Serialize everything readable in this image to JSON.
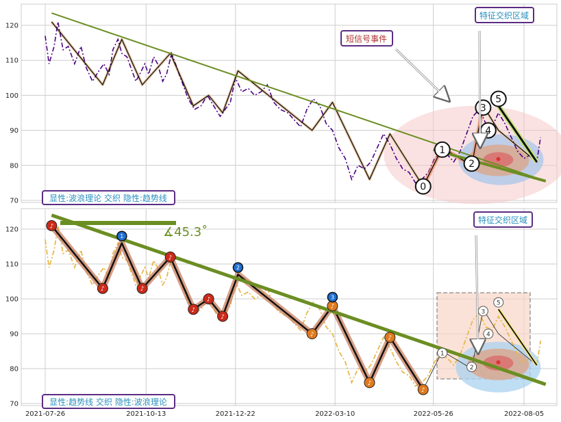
{
  "chart_data": [
    {
      "type": "line",
      "ylim": [
        69,
        127
      ],
      "yticks": [
        70,
        80,
        90,
        100,
        110,
        120
      ],
      "grid": true,
      "series": [
        {
          "style": "dashdot",
          "color": "#4b0082",
          "x": [
            "2021-07-26",
            "2021-07-29",
            "2021-08-02",
            "2021-08-05",
            "2021-08-09",
            "2021-08-13",
            "2021-08-18",
            "2021-08-23",
            "2021-08-27",
            "2021-09-01",
            "2021-09-06",
            "2021-09-10",
            "2021-09-14",
            "2021-09-17",
            "2021-09-21",
            "2021-09-24",
            "2021-09-28",
            "2021-10-01",
            "2021-10-05",
            "2021-10-08",
            "2021-10-12",
            "2021-10-15",
            "2021-10-19",
            "2021-10-22",
            "2021-10-26",
            "2021-10-29",
            "2021-11-02",
            "2021-11-06",
            "2021-11-10",
            "2021-11-15",
            "2021-11-20",
            "2021-11-25",
            "2021-11-30",
            "2021-12-05",
            "2021-12-10",
            "2021-12-14",
            "2021-12-18",
            "2021-12-22",
            "2021-12-27",
            "2022-01-01",
            "2022-01-06",
            "2022-01-11",
            "2022-01-16",
            "2022-01-21",
            "2022-01-26",
            "2022-02-01",
            "2022-02-06",
            "2022-02-11",
            "2022-02-16",
            "2022-02-21",
            "2022-02-26",
            "2022-03-03",
            "2022-03-08",
            "2022-03-13",
            "2022-03-18",
            "2022-03-23",
            "2022-03-28",
            "2022-04-02",
            "2022-04-07",
            "2022-04-12",
            "2022-04-17",
            "2022-04-22",
            "2022-04-27",
            "2022-05-02",
            "2022-05-07",
            "2022-05-12",
            "2022-05-17",
            "2022-05-22",
            "2022-05-27",
            "2022-06-01",
            "2022-06-06",
            "2022-06-11",
            "2022-06-16",
            "2022-06-21",
            "2022-06-26",
            "2022-07-01",
            "2022-07-06",
            "2022-07-11",
            "2022-07-16",
            "2022-07-21",
            "2022-07-26",
            "2022-07-31",
            "2022-08-05",
            "2022-08-10",
            "2022-08-15",
            "2022-08-18"
          ],
          "y": [
            117,
            109,
            114,
            121,
            113,
            114,
            109,
            114,
            108,
            104,
            107,
            109,
            106,
            113,
            116,
            112,
            111,
            108,
            104,
            106,
            109,
            106,
            111,
            109,
            104,
            106,
            112,
            108,
            104,
            99,
            96,
            97,
            100,
            97,
            94,
            96,
            98,
            105,
            101,
            102,
            100,
            101,
            103,
            98,
            96,
            95,
            93,
            91,
            96,
            99,
            97,
            92,
            90,
            85,
            82,
            76,
            80,
            79,
            81,
            85,
            89,
            86,
            82,
            79,
            78,
            75,
            76,
            78,
            82,
            84,
            83,
            81,
            84,
            89,
            94,
            96,
            92,
            91,
            95,
            92,
            88,
            84,
            82,
            83,
            81,
            88
          ]
        },
        {
          "style": "solid",
          "color": "#1a1a1a",
          "x": [
            "2021-07-31",
            "2021-09-09",
            "2021-09-24",
            "2021-10-10",
            "2021-11-01",
            "2021-11-19",
            "2021-12-01",
            "2021-12-12",
            "2021-12-24",
            "2022-02-20",
            "2022-03-08",
            "2022-04-06",
            "2022-04-22",
            "2022-05-18",
            "2022-06-02",
            "2022-06-25",
            "2022-07-04",
            "2022-07-16",
            "2022-08-15"
          ],
          "y": [
            121,
            103,
            116,
            103,
            112,
            97,
            100,
            95,
            107,
            90,
            98,
            76,
            89,
            74,
            85,
            80,
            97,
            90,
            81
          ]
        }
      ],
      "trendline": {
        "start": [
          "2021-07-31",
          123.5
        ],
        "end": [
          "2022-08-22",
          75.5
        ],
        "color": "#6b8e23"
      },
      "points": [
        {
          "label": "0",
          "x": "2022-05-18",
          "y": 74
        },
        {
          "label": "1",
          "x": "2022-06-02",
          "y": 84.5
        },
        {
          "label": "2",
          "x": "2022-06-25",
          "y": 80.5
        },
        {
          "label": "3",
          "x": "2022-07-04",
          "y": 96.5
        },
        {
          "label": "4",
          "x": "2022-07-08",
          "y": 90
        },
        {
          "label": "5",
          "x": "2022-07-16",
          "y": 99
        }
      ],
      "annotations": {
        "short_signal": "短信号事件",
        "feature_zone": "特征交织区域"
      },
      "legend_text": "显性:波浪理论 交织 隐性:趋势线"
    },
    {
      "type": "line",
      "ylim": [
        69,
        127
      ],
      "yticks": [
        70,
        80,
        90,
        100,
        110,
        120
      ],
      "grid": true,
      "xticks": [
        "2021-07-26",
        "2021-10-13",
        "2021-12-22",
        "2022-03-10",
        "2022-05-26",
        "2022-08-05"
      ],
      "angle_label": "∡45.3˚",
      "trendline": {
        "start": [
          "2021-07-31",
          124
        ],
        "end": [
          "2022-08-22",
          75.5
        ],
        "color": "#6b8e23"
      },
      "points": [
        {
          "label": "1",
          "x": "2021-09-24",
          "y": 118
        },
        {
          "label": "2",
          "x": "2021-12-24",
          "y": 109
        },
        {
          "label": "3",
          "x": "2022-03-08",
          "y": 100.5
        },
        {
          "label": "1",
          "x": "2022-06-02",
          "y": 84.5
        },
        {
          "label": "2",
          "x": "2022-06-25",
          "y": 80.5
        },
        {
          "label": "3",
          "x": "2022-07-04",
          "y": 96.5
        },
        {
          "label": "4",
          "x": "2022-07-08",
          "y": 90
        },
        {
          "label": "5",
          "x": "2022-07-16",
          "y": 99
        }
      ],
      "annotations": {
        "feature_zone": "特征交织区域"
      },
      "legend_text": "显性:趋势线 交织 隐性:波浪理论"
    }
  ],
  "colors": {
    "grid": "#cccccc",
    "trend": "#6b8e23",
    "price_top": "#4b0082",
    "price_bottom": "#e8b84a",
    "wave_halo": "#c97f5e",
    "label_border": "#5b2c83",
    "label_text": "#2a8fbf",
    "signal_text": "#b03030"
  }
}
